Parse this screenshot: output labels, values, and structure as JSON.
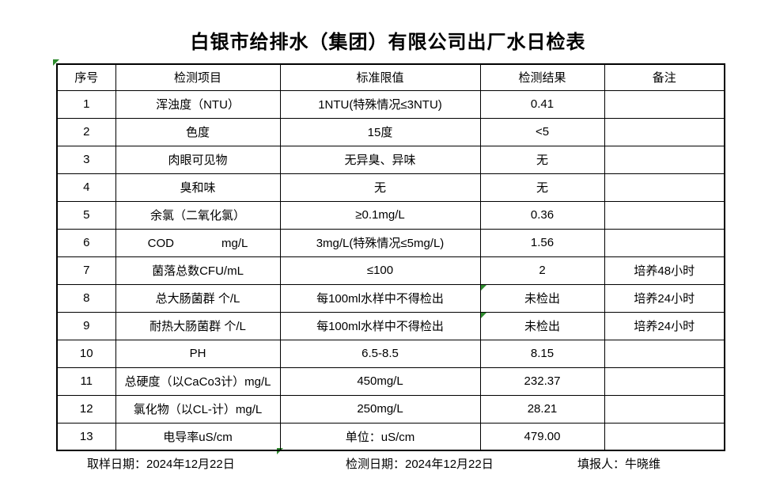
{
  "title": "白银市给排水（集团）有限公司出厂水日检表",
  "colors": {
    "flag_green": "#2E8B2E",
    "border_black": "#000000"
  },
  "table": {
    "headers": [
      "序号",
      "检测项目",
      "标准限值",
      "检测结果",
      "备注"
    ],
    "rows": [
      {
        "no": "1",
        "item": "浑浊度（NTU）",
        "limit": "1NTU(特殊情况≤3NTU)",
        "result": "0.41",
        "note": "",
        "green_flag": false
      },
      {
        "no": "2",
        "item": "色度",
        "limit": "15度",
        "result": "<5",
        "note": "",
        "green_flag": false
      },
      {
        "no": "3",
        "item": "肉眼可见物",
        "limit": "无异臭、异味",
        "result": "无",
        "note": "",
        "green_flag": false
      },
      {
        "no": "4",
        "item": "臭和味",
        "limit": "无",
        "result": "无",
        "note": "",
        "green_flag": false
      },
      {
        "no": "5",
        "item": "余氯（二氧化氯）",
        "limit": "≥0.1mg/L",
        "result": "0.36",
        "note": "",
        "green_flag": false
      },
      {
        "no": "6",
        "item": "COD　　　　mg/L",
        "limit": "3mg/L(特殊情况≤5mg/L)",
        "result": "1.56",
        "note": "",
        "green_flag": false
      },
      {
        "no": "7",
        "item": "菌落总数CFU/mL",
        "limit": "≤100",
        "result": "2",
        "note": "培养48小时",
        "green_flag": false
      },
      {
        "no": "8",
        "item": "总大肠菌群 个/L",
        "limit": "每100ml水样中不得检出",
        "result": "未检出",
        "note": "培养24小时",
        "green_flag": true
      },
      {
        "no": "9",
        "item": "耐热大肠菌群 个/L",
        "limit": "每100ml水样中不得检出",
        "result": "未检出",
        "note": "培养24小时",
        "green_flag": true
      },
      {
        "no": "10",
        "item": "PH",
        "limit": "6.5-8.5",
        "result": "8.15",
        "note": "",
        "green_flag": false
      },
      {
        "no": "11",
        "item": "总硬度（以CaCo3计）mg/L",
        "limit": "450mg/L",
        "result": "232.37",
        "note": "",
        "green_flag": false
      },
      {
        "no": "12",
        "item": "氯化物（以CL-计）mg/L",
        "limit": "250mg/L",
        "result": "28.21",
        "note": "",
        "green_flag": false
      },
      {
        "no": "13",
        "item": "电导率uS/cm",
        "limit": "单位：uS/cm",
        "result": "479.00",
        "note": "",
        "green_flag": false
      }
    ]
  },
  "footer": {
    "sampling_date": "取样日期：2024年12月22日",
    "testing_date": "检测日期：2024年12月22日",
    "filled_by": "填报人：牛晓维"
  }
}
